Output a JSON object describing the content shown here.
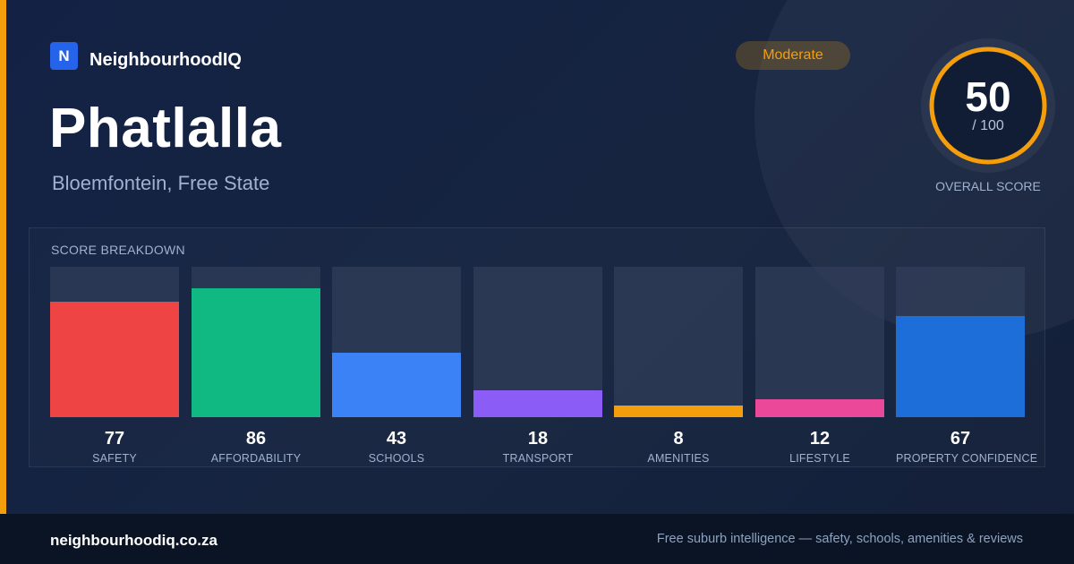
{
  "brand": {
    "logo_letter": "N",
    "name": "NeighbourhoodIQ",
    "logo_color": "#2563eb"
  },
  "suburb": {
    "name": "Phatlalla",
    "location": "Bloemfontein, Free State"
  },
  "rating": {
    "badge": "Moderate",
    "color": "#f59e0b"
  },
  "overall": {
    "score": "50",
    "max": "/ 100",
    "label": "OVERALL SCORE",
    "value": 50,
    "ring_color": "#f59e0b"
  },
  "breakdown": {
    "title": "SCORE BREAKDOWN",
    "items": [
      {
        "label": "SAFETY",
        "score": "77",
        "value": 77,
        "color": "#ef4444"
      },
      {
        "label": "AFFORDABILITY",
        "score": "86",
        "value": 86,
        "color": "#10b981"
      },
      {
        "label": "SCHOOLS",
        "score": "43",
        "value": 43,
        "color": "#3b82f6"
      },
      {
        "label": "TRANSPORT",
        "score": "18",
        "value": 18,
        "color": "#8b5cf6"
      },
      {
        "label": "AMENITIES",
        "score": "8",
        "value": 8,
        "color": "#f59e0b"
      },
      {
        "label": "LIFESTYLE",
        "score": "12",
        "value": 12,
        "color": "#ec4899"
      },
      {
        "label": "PROPERTY CONFIDENCE",
        "score": "67",
        "value": 67,
        "color": "#1d6ed8"
      }
    ]
  },
  "footer": {
    "url": "neighbourhoodiq.co.za",
    "tagline": "Free suburb intelligence — safety, schools, amenities & reviews"
  }
}
